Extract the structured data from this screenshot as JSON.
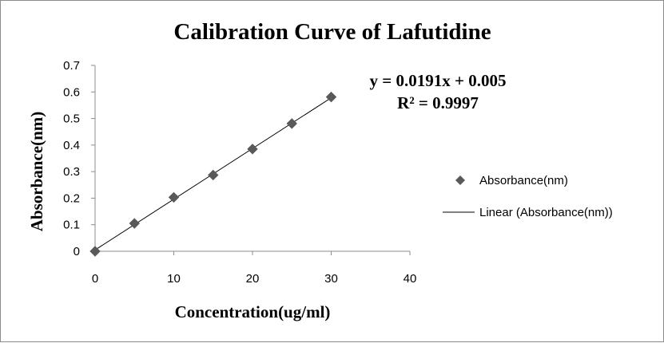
{
  "chart_data": {
    "type": "scatter",
    "title": "Calibration Curve of Lafutidine",
    "xlabel": "Concentration(ug/ml)",
    "ylabel": "Absorbance(nm)",
    "xlim": [
      0,
      40
    ],
    "ylim": [
      0,
      0.7
    ],
    "x_ticks": [
      "0",
      "10",
      "20",
      "30",
      "40"
    ],
    "y_ticks": [
      "0",
      "0.1",
      "0.2",
      "0.3",
      "0.4",
      "0.5",
      "0.6",
      "0.7"
    ],
    "grid": false,
    "legend_position": "right",
    "series": [
      {
        "name": "Absorbance(nm)",
        "marker": "diamond",
        "color": "#595959",
        "points": [
          {
            "x": 0,
            "y": 0.0
          },
          {
            "x": 5,
            "y": 0.105
          },
          {
            "x": 10,
            "y": 0.203
          },
          {
            "x": 15,
            "y": 0.287
          },
          {
            "x": 20,
            "y": 0.385
          },
          {
            "x": 25,
            "y": 0.481
          },
          {
            "x": 30,
            "y": 0.581
          }
        ]
      }
    ],
    "trendline": {
      "name": "Linear (Absorbance(nm))",
      "slope": 0.0191,
      "intercept": 0.005,
      "x_range": [
        0,
        30
      ],
      "color": "#000000"
    },
    "annotations": {
      "equation": "y = 0.0191x + 0.005",
      "r_squared": "R² = 0.9997"
    }
  }
}
